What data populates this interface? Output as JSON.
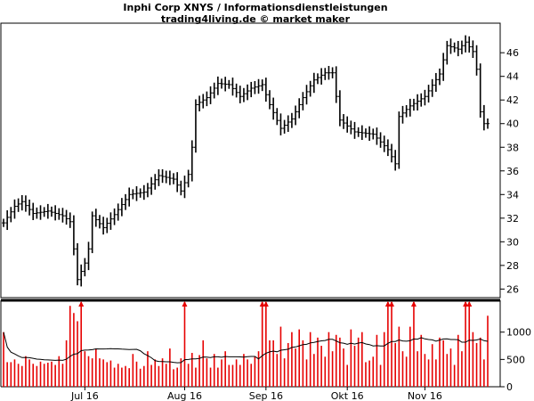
{
  "chart_data": [
    {
      "type": "ohlc",
      "title": "Inphi Corp XNYS / Informationsdienstleistungen",
      "subtitle": "trading4living.de © market maker",
      "ylim": [
        25.5,
        48.2
      ],
      "y_ticks": [
        "26",
        "28",
        "30",
        "32",
        "34",
        "36",
        "38",
        "40",
        "42",
        "44",
        "46"
      ],
      "bar_color": "#000000",
      "sessions": 132,
      "anchors": [
        [
          0,
          31.6
        ],
        [
          3,
          33.0
        ],
        [
          5,
          33.4
        ],
        [
          8,
          32.4
        ],
        [
          12,
          32.6
        ],
        [
          16,
          32.2
        ],
        [
          18,
          31.7
        ],
        [
          19,
          29.4
        ],
        [
          20,
          26.8
        ],
        [
          22,
          28.2
        ],
        [
          23,
          29.4
        ],
        [
          24,
          32.2
        ],
        [
          27,
          31.2
        ],
        [
          30,
          32.3
        ],
        [
          34,
          34.0
        ],
        [
          38,
          34.2
        ],
        [
          42,
          35.6
        ],
        [
          46,
          35.3
        ],
        [
          48,
          34.3
        ],
        [
          50,
          35.7
        ],
        [
          51,
          38.0
        ],
        [
          52,
          41.6
        ],
        [
          55,
          42.2
        ],
        [
          58,
          43.4
        ],
        [
          61,
          43.3
        ],
        [
          64,
          42.3
        ],
        [
          67,
          43.0
        ],
        [
          70,
          43.3
        ],
        [
          72,
          41.6
        ],
        [
          75,
          39.6
        ],
        [
          78,
          40.4
        ],
        [
          81,
          42.2
        ],
        [
          84,
          43.7
        ],
        [
          87,
          44.3
        ],
        [
          89,
          44.3
        ],
        [
          91,
          40.3
        ],
        [
          95,
          39.3
        ],
        [
          100,
          39.1
        ],
        [
          104,
          37.8
        ],
        [
          106,
          36.6
        ],
        [
          107,
          40.6
        ],
        [
          110,
          41.5
        ],
        [
          114,
          42.3
        ],
        [
          118,
          44.2
        ],
        [
          120,
          46.6
        ],
        [
          123,
          46.3
        ],
        [
          125,
          46.9
        ],
        [
          127,
          46.1
        ],
        [
          128,
          44.6
        ],
        [
          129,
          41.0
        ],
        [
          130,
          40.0
        ],
        [
          131,
          40.0
        ]
      ]
    },
    {
      "type": "bar",
      "ylim": [
        0,
        1550
      ],
      "y_ticks": [
        "0",
        "500",
        "1000"
      ],
      "bar_color": "#e60000",
      "ma_color": "#000000",
      "values": [
        1000,
        450,
        450,
        500,
        420,
        380,
        560,
        500,
        420,
        380,
        460,
        420,
        440,
        460,
        400,
        560,
        420,
        850,
        1480,
        1350,
        1200,
        1550,
        650,
        560,
        520,
        700,
        520,
        500,
        450,
        480,
        350,
        420,
        350,
        380,
        340,
        600,
        460,
        330,
        380,
        650,
        400,
        500,
        380,
        520,
        420,
        700,
        320,
        350,
        520,
        1550,
        420,
        620,
        350,
        580,
        850,
        520,
        350,
        600,
        350,
        500,
        650,
        400,
        400,
        500,
        400,
        600,
        500,
        420,
        550,
        650,
        1550,
        1550,
        850,
        850,
        600,
        1100,
        520,
        800,
        1000,
        700,
        1050,
        850,
        500,
        1000,
        600,
        900,
        750,
        550,
        1000,
        650,
        950,
        900,
        700,
        400,
        1050,
        750,
        900,
        1000,
        450,
        480,
        550,
        950,
        400,
        1000,
        1550,
        1550,
        800,
        1100,
        650,
        550,
        1100,
        1550,
        650,
        950,
        600,
        500,
        780,
        500,
        900,
        850,
        600,
        700,
        400,
        950,
        650,
        1550,
        1550,
        1000,
        800,
        900,
        500,
        1300
      ]
    }
  ],
  "x_axis": {
    "labels": [
      {
        "label": "Jul 16",
        "day": 22
      },
      {
        "label": "Aug 16",
        "day": 49
      },
      {
        "label": "Sep 16",
        "day": 71
      },
      {
        "label": "Okt 16",
        "day": 93
      },
      {
        "label": "Nov 16",
        "day": 114
      }
    ]
  }
}
